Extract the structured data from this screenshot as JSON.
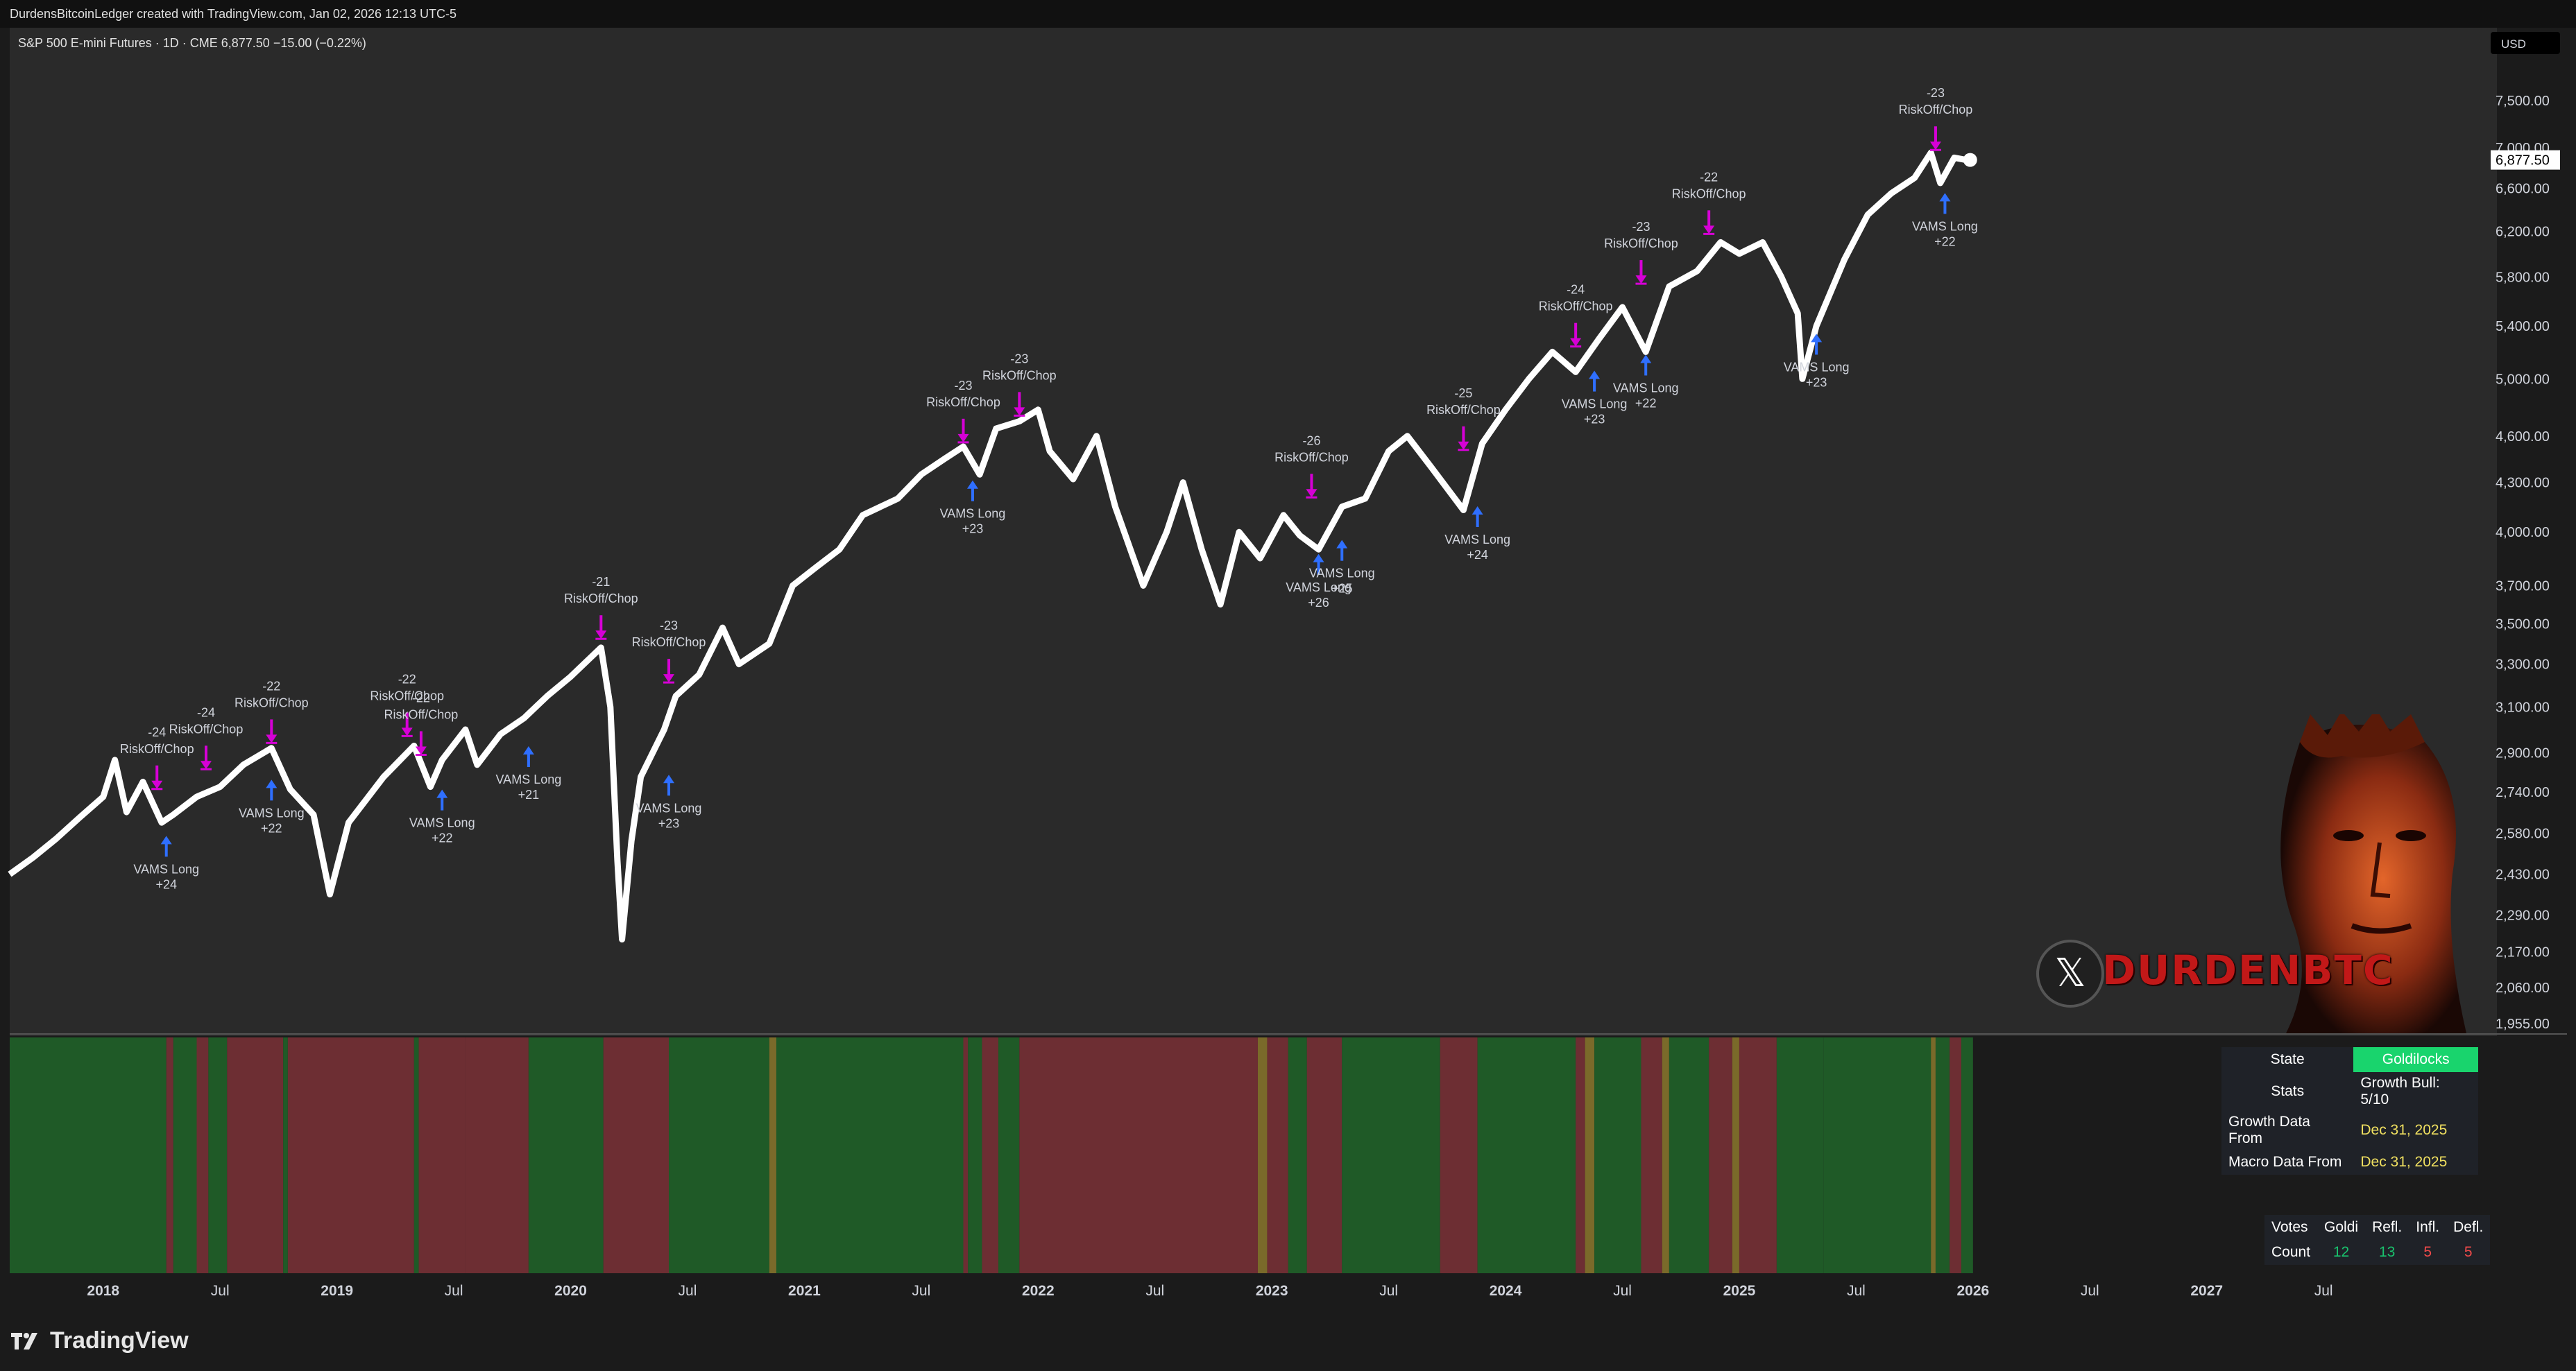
{
  "header": {
    "caption": "DurdensBitcoinLedger created with TradingView.com, Jan 02, 2026 12:13 UTC-5"
  },
  "brand": {
    "name": "TradingView",
    "icon": "tradingview-logo-icon"
  },
  "watermark": {
    "handle": "DURDENBTC",
    "icon": "x-logo-icon"
  },
  "colors": {
    "background": "#2a2a2a",
    "price_line": "#ffffff",
    "risk_off": "#d600d6",
    "long": "#2f6fff",
    "regime_growth": "#1f5a27",
    "regime_risk": "#6d2e33",
    "regime_neutral": "#7a6a2a",
    "state_badge": "#19d46d",
    "value_date": "#f0e060",
    "count_green": "#19c26d",
    "count_red": "#f04a4a"
  },
  "chart_data": {
    "type": "line",
    "legend": "S&P 500 E-mini Futures · 1D · CME  6,877.50  −15.00 (−0.22%)",
    "currency": "USD",
    "last_price_label": "6,877.50",
    "y_scale": "log",
    "ylim": [
      1955,
      7800
    ],
    "xlim": [
      2017.6,
      2028.2
    ],
    "y_ticks": [
      "7,500.00",
      "7,000.00",
      "6,600.00",
      "6,200.00",
      "5,800.00",
      "5,400.00",
      "5,000.00",
      "4,600.00",
      "4,300.00",
      "4,000.00",
      "3,700.00",
      "3,500.00",
      "3,300.00",
      "3,100.00",
      "2,900.00",
      "2,740.00",
      "2,580.00",
      "2,430.00",
      "2,290.00",
      "2,170.00",
      "2,060.00",
      "1,955.00"
    ],
    "y_tick_values": [
      7500,
      7000,
      6600,
      6200,
      5800,
      5400,
      5000,
      4600,
      4300,
      4000,
      3700,
      3500,
      3300,
      3100,
      2900,
      2740,
      2580,
      2430,
      2290,
      2170,
      2060,
      1955
    ],
    "x_ticks": [
      {
        "label": "2018",
        "t": 2018.0
      },
      {
        "label": "Jul",
        "t": 2018.5
      },
      {
        "label": "2019",
        "t": 2019.0
      },
      {
        "label": "Jul",
        "t": 2019.5
      },
      {
        "label": "2020",
        "t": 2020.0
      },
      {
        "label": "Jul",
        "t": 2020.5
      },
      {
        "label": "2021",
        "t": 2021.0
      },
      {
        "label": "Jul",
        "t": 2021.5
      },
      {
        "label": "2022",
        "t": 2022.0
      },
      {
        "label": "Jul",
        "t": 2022.5
      },
      {
        "label": "2023",
        "t": 2023.0
      },
      {
        "label": "Jul",
        "t": 2023.5
      },
      {
        "label": "2024",
        "t": 2024.0
      },
      {
        "label": "Jul",
        "t": 2024.5
      },
      {
        "label": "2025",
        "t": 2025.0
      },
      {
        "label": "Jul",
        "t": 2025.5
      },
      {
        "label": "2026",
        "t": 2026.0
      },
      {
        "label": "Jul",
        "t": 2026.5
      },
      {
        "label": "2027",
        "t": 2027.0
      },
      {
        "label": "Jul",
        "t": 2027.5
      }
    ],
    "series": [
      {
        "points": [
          [
            2017.6,
            2430
          ],
          [
            2017.7,
            2490
          ],
          [
            2017.8,
            2560
          ],
          [
            2017.9,
            2640
          ],
          [
            2018.0,
            2720
          ],
          [
            2018.05,
            2870
          ],
          [
            2018.1,
            2660
          ],
          [
            2018.17,
            2780
          ],
          [
            2018.25,
            2620
          ],
          [
            2018.3,
            2650
          ],
          [
            2018.4,
            2720
          ],
          [
            2018.5,
            2760
          ],
          [
            2018.6,
            2850
          ],
          [
            2018.72,
            2920
          ],
          [
            2018.8,
            2750
          ],
          [
            2018.9,
            2650
          ],
          [
            2018.97,
            2360
          ],
          [
            2019.05,
            2620
          ],
          [
            2019.2,
            2800
          ],
          [
            2019.33,
            2930
          ],
          [
            2019.4,
            2760
          ],
          [
            2019.45,
            2870
          ],
          [
            2019.55,
            3000
          ],
          [
            2019.6,
            2850
          ],
          [
            2019.7,
            2980
          ],
          [
            2019.8,
            3050
          ],
          [
            2019.9,
            3150
          ],
          [
            2020.0,
            3240
          ],
          [
            2020.13,
            3380
          ],
          [
            2020.17,
            3100
          ],
          [
            2020.2,
            2480
          ],
          [
            2020.22,
            2210
          ],
          [
            2020.26,
            2550
          ],
          [
            2020.3,
            2800
          ],
          [
            2020.4,
            3000
          ],
          [
            2020.45,
            3150
          ],
          [
            2020.55,
            3250
          ],
          [
            2020.65,
            3480
          ],
          [
            2020.72,
            3300
          ],
          [
            2020.85,
            3400
          ],
          [
            2020.95,
            3700
          ],
          [
            2021.05,
            3800
          ],
          [
            2021.15,
            3900
          ],
          [
            2021.25,
            4100
          ],
          [
            2021.4,
            4200
          ],
          [
            2021.5,
            4350
          ],
          [
            2021.6,
            4450
          ],
          [
            2021.68,
            4530
          ],
          [
            2021.75,
            4350
          ],
          [
            2021.82,
            4650
          ],
          [
            2021.92,
            4700
          ],
          [
            2022.0,
            4780
          ],
          [
            2022.05,
            4500
          ],
          [
            2022.15,
            4320
          ],
          [
            2022.25,
            4600
          ],
          [
            2022.33,
            4150
          ],
          [
            2022.45,
            3700
          ],
          [
            2022.55,
            4000
          ],
          [
            2022.62,
            4300
          ],
          [
            2022.7,
            3900
          ],
          [
            2022.78,
            3600
          ],
          [
            2022.86,
            4000
          ],
          [
            2022.95,
            3850
          ],
          [
            2023.05,
            4100
          ],
          [
            2023.12,
            3980
          ],
          [
            2023.2,
            3900
          ],
          [
            2023.3,
            4150
          ],
          [
            2023.4,
            4200
          ],
          [
            2023.5,
            4500
          ],
          [
            2023.58,
            4600
          ],
          [
            2023.68,
            4400
          ],
          [
            2023.82,
            4130
          ],
          [
            2023.9,
            4550
          ],
          [
            2024.0,
            4780
          ],
          [
            2024.1,
            5000
          ],
          [
            2024.2,
            5200
          ],
          [
            2024.3,
            5050
          ],
          [
            2024.4,
            5300
          ],
          [
            2024.5,
            5550
          ],
          [
            2024.6,
            5200
          ],
          [
            2024.7,
            5720
          ],
          [
            2024.82,
            5850
          ],
          [
            2024.92,
            6100
          ],
          [
            2025.0,
            6000
          ],
          [
            2025.1,
            6100
          ],
          [
            2025.18,
            5800
          ],
          [
            2025.25,
            5500
          ],
          [
            2025.27,
            5000
          ],
          [
            2025.33,
            5400
          ],
          [
            2025.45,
            5950
          ],
          [
            2025.55,
            6350
          ],
          [
            2025.65,
            6550
          ],
          [
            2025.75,
            6700
          ],
          [
            2025.82,
            6950
          ],
          [
            2025.86,
            6650
          ],
          [
            2025.92,
            6900
          ],
          [
            2025.97,
            6877.5
          ]
        ]
      }
    ],
    "signals": [
      {
        "type": "risk_off",
        "t": 2018.23,
        "y": 2740,
        "value": "-24",
        "label": "RiskOff/Chop"
      },
      {
        "type": "risk_off",
        "t": 2018.44,
        "y": 2820,
        "value": "-24",
        "label": "RiskOff/Chop"
      },
      {
        "type": "risk_off",
        "t": 2018.72,
        "y": 2930,
        "value": "-22",
        "label": "RiskOff/Chop"
      },
      {
        "type": "risk_off",
        "t": 2019.3,
        "y": 2960,
        "value": "-22",
        "label": "RiskOff/Chop"
      },
      {
        "type": "risk_off",
        "t": 2019.36,
        "y": 2880,
        "value": "-22",
        "label": "RiskOff/Chop"
      },
      {
        "type": "risk_off",
        "t": 2020.13,
        "y": 3410,
        "value": "-21",
        "label": "RiskOff/Chop"
      },
      {
        "type": "risk_off",
        "t": 2020.42,
        "y": 3200,
        "value": "-23",
        "label": "RiskOff/Chop"
      },
      {
        "type": "risk_off",
        "t": 2021.68,
        "y": 4540,
        "value": "-23",
        "label": "RiskOff/Chop"
      },
      {
        "type": "risk_off",
        "t": 2021.92,
        "y": 4720,
        "value": "-23",
        "label": "RiskOff/Chop"
      },
      {
        "type": "risk_off",
        "t": 2023.17,
        "y": 4190,
        "value": "-26",
        "label": "RiskOff/Chop"
      },
      {
        "type": "risk_off",
        "t": 2023.82,
        "y": 4490,
        "value": "-25",
        "label": "RiskOff/Chop"
      },
      {
        "type": "risk_off",
        "t": 2024.3,
        "y": 5220,
        "value": "-24",
        "label": "RiskOff/Chop"
      },
      {
        "type": "risk_off",
        "t": 2024.58,
        "y": 5720,
        "value": "-23",
        "label": "RiskOff/Chop"
      },
      {
        "type": "risk_off",
        "t": 2024.87,
        "y": 6150,
        "value": "-22",
        "label": "RiskOff/Chop"
      },
      {
        "type": "risk_off",
        "t": 2025.84,
        "y": 6950,
        "value": "-23",
        "label": "RiskOff/Chop"
      },
      {
        "type": "long",
        "t": 2018.27,
        "y": 2580,
        "value": "+24",
        "label": "VAMS Long"
      },
      {
        "type": "long",
        "t": 2018.72,
        "y": 2800,
        "value": "+22",
        "label": "VAMS Long"
      },
      {
        "type": "long",
        "t": 2019.45,
        "y": 2760,
        "value": "+22",
        "label": "VAMS Long"
      },
      {
        "type": "long",
        "t": 2019.82,
        "y": 2940,
        "value": "+21",
        "label": "VAMS Long"
      },
      {
        "type": "long",
        "t": 2020.42,
        "y": 2820,
        "value": "+23",
        "label": "VAMS Long"
      },
      {
        "type": "long",
        "t": 2021.72,
        "y": 4330,
        "value": "+23",
        "label": "VAMS Long"
      },
      {
        "type": "long",
        "t": 2023.2,
        "y": 3890,
        "value": "+26",
        "label": "VAMS Long"
      },
      {
        "type": "long",
        "t": 2023.3,
        "y": 3970,
        "value": "+25",
        "label": "VAMS Long"
      },
      {
        "type": "long",
        "t": 2023.88,
        "y": 4170,
        "value": "+24",
        "label": "VAMS Long"
      },
      {
        "type": "long",
        "t": 2024.38,
        "y": 5080,
        "value": "+23",
        "label": "VAMS Long"
      },
      {
        "type": "long",
        "t": 2024.6,
        "y": 5200,
        "value": "+22",
        "label": "VAMS Long"
      },
      {
        "type": "long",
        "t": 2025.33,
        "y": 5360,
        "value": "+23",
        "label": "VAMS Long"
      },
      {
        "type": "long",
        "t": 2025.88,
        "y": 6580,
        "value": "+22",
        "label": "VAMS Long"
      }
    ],
    "regime_bands": [
      {
        "from": 2017.6,
        "to": 2018.27,
        "regime": "growth"
      },
      {
        "from": 2018.27,
        "to": 2018.3,
        "regime": "risk"
      },
      {
        "from": 2018.3,
        "to": 2018.4,
        "regime": "growth"
      },
      {
        "from": 2018.4,
        "to": 2018.45,
        "regime": "risk"
      },
      {
        "from": 2018.45,
        "to": 2018.53,
        "regime": "growth"
      },
      {
        "from": 2018.53,
        "to": 2018.77,
        "regime": "risk"
      },
      {
        "from": 2018.77,
        "to": 2018.79,
        "regime": "growth"
      },
      {
        "from": 2018.79,
        "to": 2019.33,
        "regime": "risk"
      },
      {
        "from": 2019.33,
        "to": 2019.35,
        "regime": "growth"
      },
      {
        "from": 2019.35,
        "to": 2019.55,
        "regime": "risk"
      },
      {
        "from": 2019.55,
        "to": 2019.82,
        "regime": "risk"
      },
      {
        "from": 2019.82,
        "to": 2020.14,
        "regime": "growth"
      },
      {
        "from": 2020.14,
        "to": 2020.42,
        "regime": "risk"
      },
      {
        "from": 2020.42,
        "to": 2020.85,
        "regime": "growth"
      },
      {
        "from": 2020.85,
        "to": 2020.88,
        "regime": "neutral"
      },
      {
        "from": 2020.88,
        "to": 2021.68,
        "regime": "growth"
      },
      {
        "from": 2021.68,
        "to": 2021.7,
        "regime": "risk"
      },
      {
        "from": 2021.7,
        "to": 2021.76,
        "regime": "growth"
      },
      {
        "from": 2021.76,
        "to": 2021.83,
        "regime": "risk"
      },
      {
        "from": 2021.83,
        "to": 2021.92,
        "regime": "growth"
      },
      {
        "from": 2021.92,
        "to": 2022.94,
        "regime": "risk"
      },
      {
        "from": 2022.94,
        "to": 2022.98,
        "regime": "neutral"
      },
      {
        "from": 2022.98,
        "to": 2023.07,
        "regime": "risk"
      },
      {
        "from": 2023.07,
        "to": 2023.15,
        "regime": "growth"
      },
      {
        "from": 2023.15,
        "to": 2023.3,
        "regime": "risk"
      },
      {
        "from": 2023.3,
        "to": 2023.72,
        "regime": "growth"
      },
      {
        "from": 2023.72,
        "to": 2023.88,
        "regime": "risk"
      },
      {
        "from": 2023.88,
        "to": 2024.3,
        "regime": "growth"
      },
      {
        "from": 2024.3,
        "to": 2024.34,
        "regime": "risk"
      },
      {
        "from": 2024.34,
        "to": 2024.38,
        "regime": "neutral"
      },
      {
        "from": 2024.38,
        "to": 2024.58,
        "regime": "growth"
      },
      {
        "from": 2024.58,
        "to": 2024.67,
        "regime": "risk"
      },
      {
        "from": 2024.67,
        "to": 2024.7,
        "regime": "neutral"
      },
      {
        "from": 2024.7,
        "to": 2024.87,
        "regime": "growth"
      },
      {
        "from": 2024.87,
        "to": 2024.97,
        "regime": "risk"
      },
      {
        "from": 2024.97,
        "to": 2025.0,
        "regime": "neutral"
      },
      {
        "from": 2025.0,
        "to": 2025.16,
        "regime": "risk"
      },
      {
        "from": 2025.16,
        "to": 2025.36,
        "regime": "growth"
      },
      {
        "from": 2025.36,
        "to": 2025.82,
        "regime": "growth"
      },
      {
        "from": 2025.82,
        "to": 2025.84,
        "regime": "neutral"
      },
      {
        "from": 2025.84,
        "to": 2025.9,
        "regime": "growth"
      },
      {
        "from": 2025.9,
        "to": 2025.95,
        "regime": "risk"
      },
      {
        "from": 2025.95,
        "to": 2026.0,
        "regime": "growth"
      }
    ]
  },
  "state_panel": {
    "rows": [
      {
        "key": "State",
        "value": "Goldilocks"
      },
      {
        "key": "Stats",
        "value": "Growth Bull: 5/10"
      },
      {
        "key": "Growth Data From",
        "value": "Dec 31, 2025"
      },
      {
        "key": "Macro Data From",
        "value": "Dec 31, 2025"
      }
    ]
  },
  "votes_panel": {
    "headers": [
      "Votes",
      "Goldi",
      "Refl.",
      "Infl.",
      "Defl."
    ],
    "row": [
      "Count",
      "12",
      "13",
      "5",
      "5"
    ]
  }
}
